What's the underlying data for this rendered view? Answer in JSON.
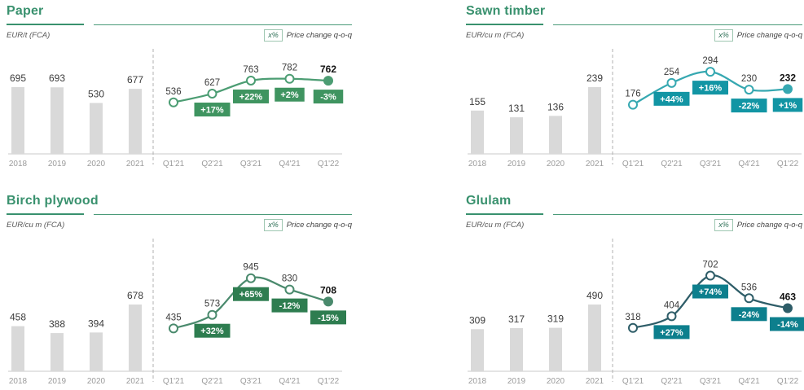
{
  "theme": {
    "background": "#ffffff",
    "title_color": "#39916e",
    "bar_color": "#d9d9d9",
    "axis_color": "#c9c9c9",
    "divider_color": "#b0b0b0",
    "category_label_color": "#9b9b9b",
    "value_label_color": "#3b3b3b",
    "final_value_label_color": "#111111",
    "badge_text_color": "#ffffff"
  },
  "chart_data": [
    {
      "type": "bar+line",
      "title": "Paper",
      "unit_label": "EUR/t (FCA)",
      "legend_symbol": "x%",
      "legend_label": "Price change q-o-q",
      "bar_categories": [
        "2018",
        "2019",
        "2020",
        "2021"
      ],
      "bar_values": [
        695,
        693,
        530,
        677
      ],
      "line_categories": [
        "Q1'21",
        "Q2'21",
        "Q3'21",
        "Q4'21",
        "Q1'22"
      ],
      "line_values": [
        536,
        627,
        763,
        782,
        762
      ],
      "pct_change_labels": [
        "+17%",
        "+22%",
        "+2%",
        "-3%"
      ],
      "ylim": [
        0,
        782
      ],
      "colors": {
        "line": "#4c9d73",
        "badge": "#3f9460",
        "bar": "#d9d9d9"
      }
    },
    {
      "type": "bar+line",
      "title": "Sawn timber",
      "unit_label": "EUR/cu m (FCA)",
      "legend_symbol": "x%",
      "legend_label": "Price change q-o-q",
      "bar_categories": [
        "2018",
        "2019",
        "2020",
        "2021"
      ],
      "bar_values": [
        155,
        131,
        136,
        239
      ],
      "line_categories": [
        "Q1'21",
        "Q2'21",
        "Q3'21",
        "Q4'21",
        "Q1'22"
      ],
      "line_values": [
        176,
        254,
        294,
        230,
        232
      ],
      "pct_change_labels": [
        "+44%",
        "+16%",
        "-22%",
        "+1%"
      ],
      "ylim": [
        0,
        294
      ],
      "colors": {
        "line": "#36a8b1",
        "badge": "#1295a4",
        "bar": "#d9d9d9"
      }
    },
    {
      "type": "bar+line",
      "title": "Birch plywood",
      "unit_label": "EUR/cu m (FCA)",
      "legend_symbol": "x%",
      "legend_label": "Price change q-o-q",
      "bar_categories": [
        "2018",
        "2019",
        "2020",
        "2021"
      ],
      "bar_values": [
        458,
        388,
        394,
        678
      ],
      "line_categories": [
        "Q1'21",
        "Q2'21",
        "Q3'21",
        "Q4'21",
        "Q1'22"
      ],
      "line_values": [
        435,
        573,
        945,
        830,
        708
      ],
      "pct_change_labels": [
        "+32%",
        "+65%",
        "-12%",
        "-15%"
      ],
      "ylim": [
        0,
        945
      ],
      "colors": {
        "line": "#4a8a6d",
        "badge": "#2e7d50",
        "bar": "#d9d9d9"
      }
    },
    {
      "type": "bar+line",
      "title": "Glulam",
      "unit_label": "EUR/cu m (FCA)",
      "legend_symbol": "x%",
      "legend_label": "Price change q-o-q",
      "bar_categories": [
        "2018",
        "2019",
        "2020",
        "2021"
      ],
      "bar_values": [
        309,
        317,
        319,
        490
      ],
      "line_categories": [
        "Q1'21",
        "Q2'21",
        "Q3'21",
        "Q4'21",
        "Q1'22"
      ],
      "line_values": [
        318,
        404,
        702,
        536,
        463
      ],
      "pct_change_labels": [
        "+27%",
        "+74%",
        "-24%",
        "-14%"
      ],
      "ylim": [
        0,
        702
      ],
      "colors": {
        "line": "#2e5d68",
        "badge": "#0d7f8d",
        "bar": "#d9d9d9"
      }
    }
  ]
}
